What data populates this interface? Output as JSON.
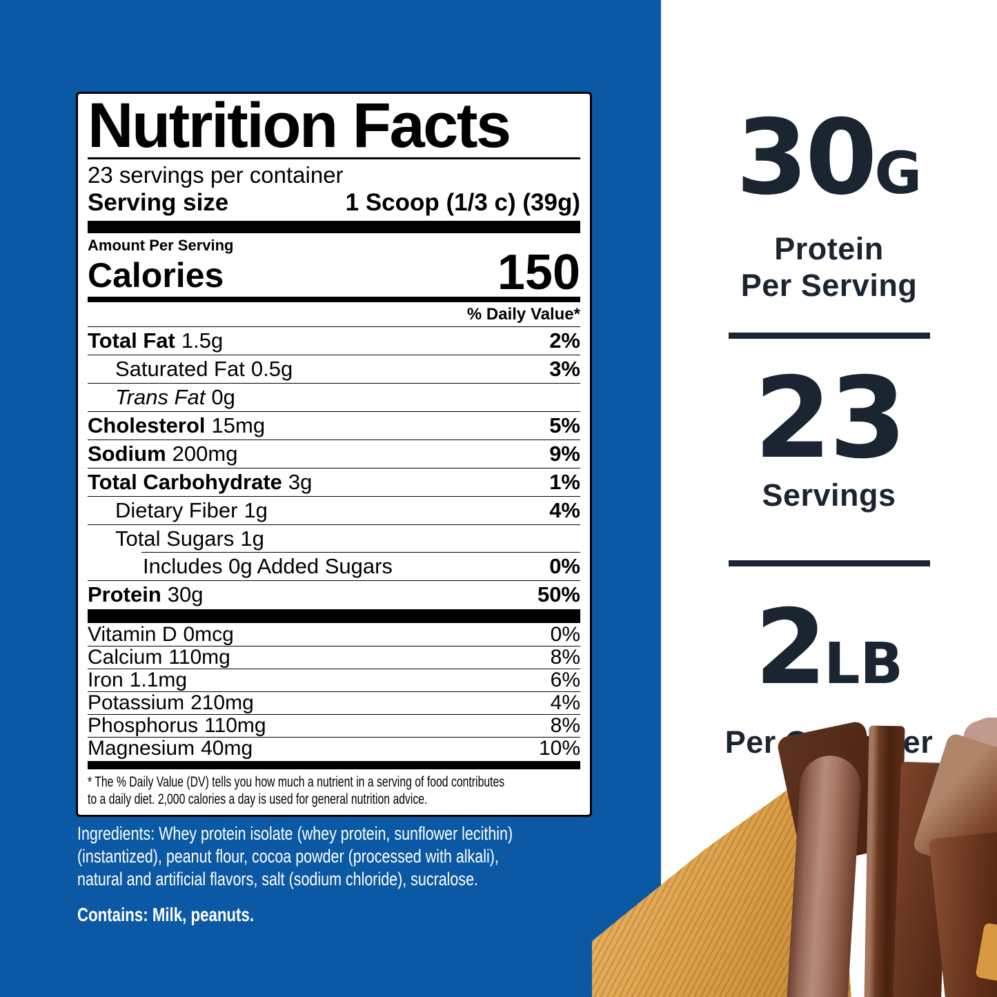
{
  "colors": {
    "background_blue": "#0b59a5",
    "navy_text": "#1b2531",
    "label_background": "#ffffff",
    "label_text": "#000000",
    "peanut_butter": "#d79a43",
    "chocolate_dark": "#47220f",
    "chocolate_light": "#b58b7b"
  },
  "nutrition_label": {
    "title": "Nutrition Facts",
    "servings_per_container": "23 servings per container",
    "serving_size": {
      "label": "Serving size",
      "value": "1 Scoop (1/3 c) (39g)"
    },
    "amount_per_serving": "Amount Per Serving",
    "calories": {
      "label": "Calories",
      "value": "150"
    },
    "daily_value_header": "% Daily Value*",
    "nutrient_rows": [
      {
        "name": "Total Fat",
        "amount": "1.5g",
        "dv": "2%"
      },
      {
        "name": "Saturated Fat",
        "amount": "0.5g",
        "dv": "3%"
      },
      {
        "name": "Trans Fat",
        "amount": "0g",
        "dv": ""
      },
      {
        "name": "Cholesterol",
        "amount": "15mg",
        "dv": "5%"
      },
      {
        "name": "Sodium",
        "amount": "200mg",
        "dv": "9%"
      },
      {
        "name": "Total Carbohydrate",
        "amount": "3g",
        "dv": "1%"
      },
      {
        "name": "Dietary Fiber",
        "amount": "1g",
        "dv": "4%"
      },
      {
        "name": "Total Sugars",
        "amount": "1g",
        "dv": ""
      },
      {
        "name": "Includes 0g Added Sugars",
        "amount": "",
        "dv": "0%"
      },
      {
        "name": "Protein",
        "amount": "30g",
        "dv": "50%"
      }
    ],
    "micronutrient_rows": [
      {
        "name": "Vitamin D",
        "amount": "0mcg",
        "dv": "0%"
      },
      {
        "name": "Calcium",
        "amount": "110mg",
        "dv": "8%"
      },
      {
        "name": "Iron",
        "amount": "1.1mg",
        "dv": "6%"
      },
      {
        "name": "Potassium",
        "amount": "210mg",
        "dv": "4%"
      },
      {
        "name": "Phosphorus",
        "amount": "110mg",
        "dv": "8%"
      },
      {
        "name": "Magnesium",
        "amount": "40mg",
        "dv": "10%"
      }
    ],
    "footnote_lines": [
      "* The % Daily Value (DV) tells you how much a nutrient in a serving of food contributes",
      "to a daily diet. 2,000 calories a day is used for general nutrition advice."
    ]
  },
  "ingredients": {
    "lines": [
      "Ingredients: Whey protein isolate (whey protein, sunflower lecithin)",
      "(instantized), peanut flour, cocoa powder (processed with alkali),",
      "natural and artificial flavors, salt (sodium chloride), sucralose."
    ],
    "contains": "Contains: Milk, peanuts."
  },
  "highlights": {
    "protein": {
      "value": "30",
      "unit": "G",
      "caption_line1": "Protein",
      "caption_line2": "Per Serving"
    },
    "servings": {
      "value": "23",
      "caption_line1": "Servings"
    },
    "weight": {
      "value": "2",
      "unit": "LB",
      "caption_line1": "Per Container"
    }
  }
}
